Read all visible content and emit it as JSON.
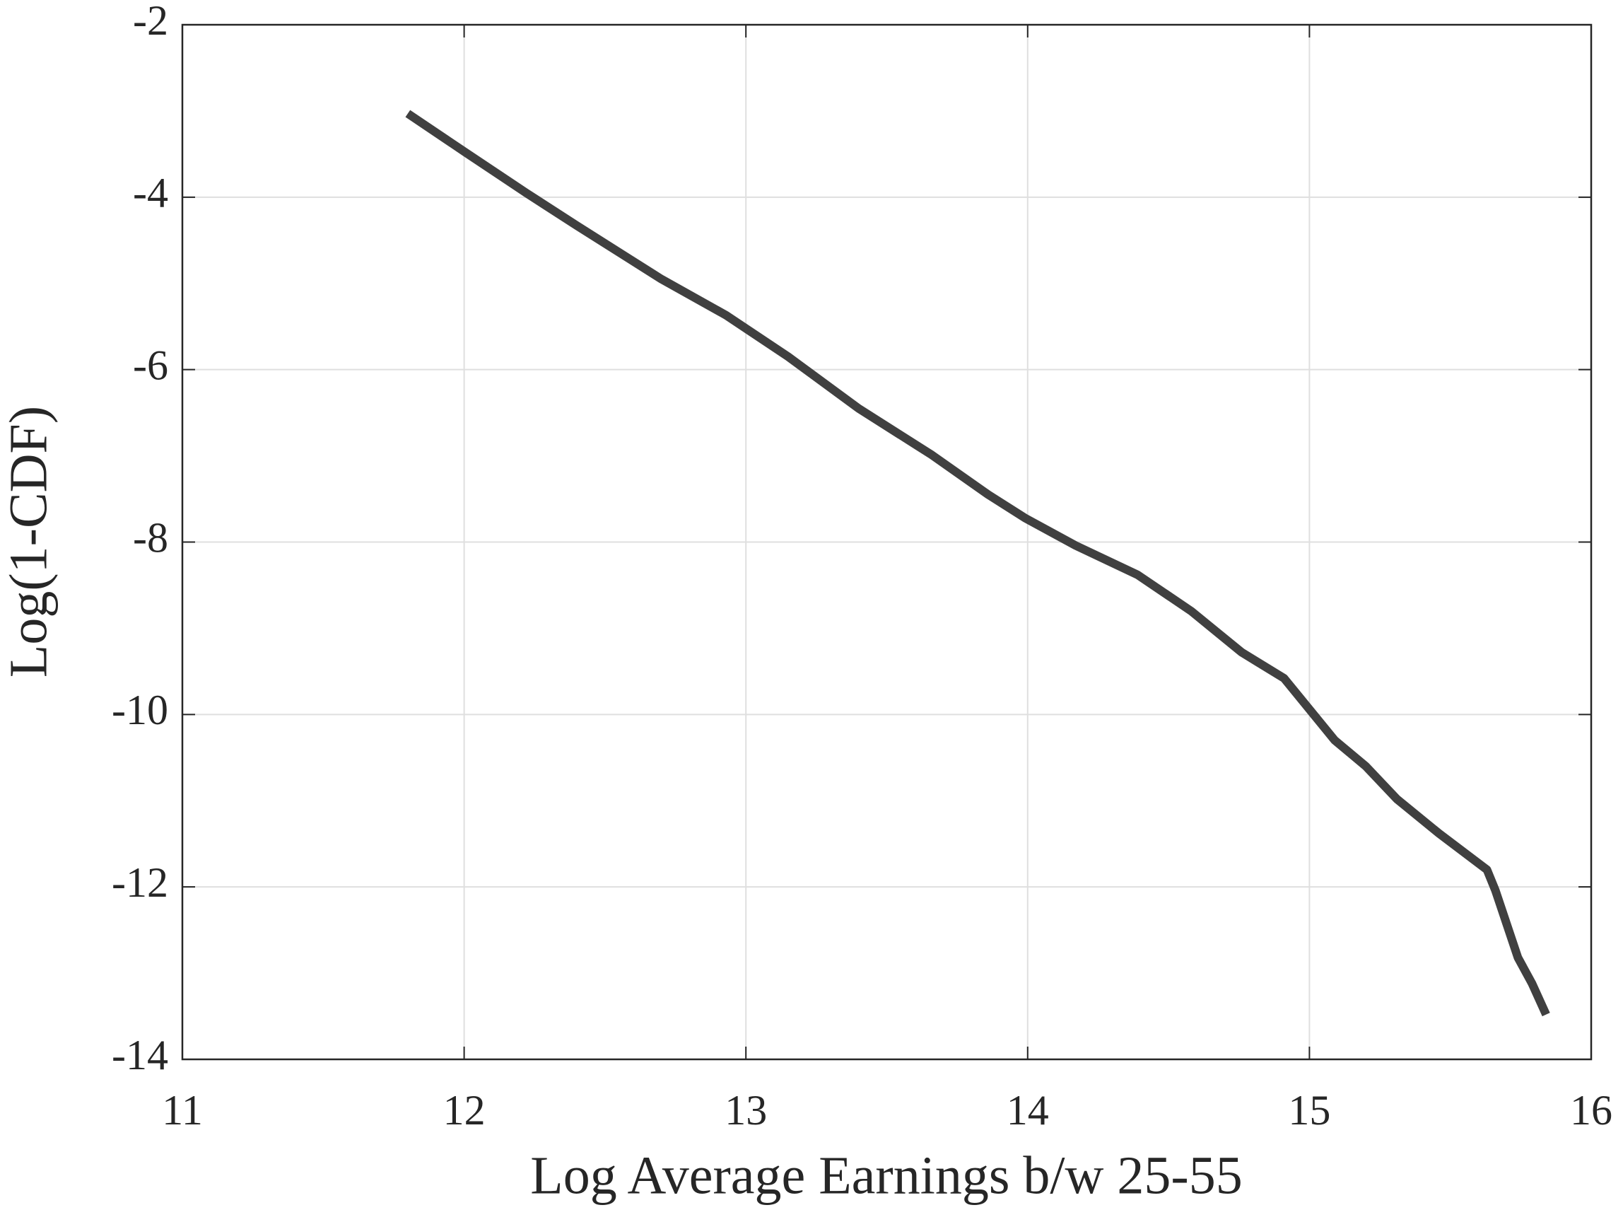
{
  "chart_data": {
    "type": "line",
    "xlabel": "Log Average Earnings b/w 25-55",
    "ylabel": "Log(1-CDF)",
    "x": [
      11.8,
      12.0,
      12.22,
      12.4,
      12.7,
      12.93,
      13.15,
      13.4,
      13.66,
      13.86,
      13.99,
      14.17,
      14.39,
      14.58,
      14.76,
      14.91,
      15.09,
      15.2,
      15.31,
      15.46,
      15.63,
      15.66,
      15.74,
      15.79,
      15.84
    ],
    "series": [
      {
        "color": "#404040",
        "values": [
          -3.03,
          -3.47,
          -3.95,
          -4.33,
          -4.95,
          -5.37,
          -5.85,
          -6.45,
          -6.99,
          -7.45,
          -7.72,
          -8.04,
          -8.38,
          -8.8,
          -9.28,
          -9.58,
          -10.3,
          -10.6,
          -10.98,
          -11.38,
          -11.8,
          -12.04,
          -12.82,
          -13.12,
          -13.48
        ]
      }
    ],
    "xlim": [
      11,
      16
    ],
    "xticks": [
      11,
      12,
      13,
      14,
      15,
      16
    ],
    "ylim": [
      -14,
      -2
    ],
    "yticks": [
      -14,
      -12,
      -10,
      -8,
      -6,
      -4,
      -2
    ],
    "grid": true
  }
}
